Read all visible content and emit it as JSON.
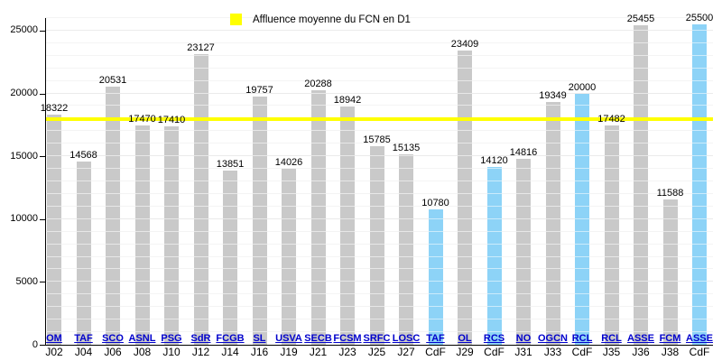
{
  "chart_data": {
    "type": "bar",
    "title": "",
    "legend_label": "Affluence moyenne du FCN en D1",
    "ylabel": "",
    "xlabel": "",
    "ylim": [
      0,
      26000
    ],
    "y_ticks": [
      0,
      5000,
      10000,
      15000,
      20000,
      25000
    ],
    "y_minor_step": 1000,
    "grid": true,
    "legend_position": "top-center",
    "colors": {
      "bar_default": "#c9c9c9",
      "bar_highlight": "#8dd3f7",
      "average_line": "#ffff00",
      "link_blue": "#0000cc",
      "text": "#000000"
    },
    "average_line": {
      "value": 17964,
      "label": "Affluence moyenne du FCN en D1"
    },
    "bars": [
      {
        "opponent": "OM",
        "matchday": "J02",
        "value": 18322,
        "highlight": false
      },
      {
        "opponent": "TAF",
        "matchday": "J04",
        "value": 14568,
        "highlight": false
      },
      {
        "opponent": "SCO",
        "matchday": "J06",
        "value": 20531,
        "highlight": false
      },
      {
        "opponent": "ASNL",
        "matchday": "J08",
        "value": 17470,
        "highlight": false
      },
      {
        "opponent": "PSG",
        "matchday": "J10",
        "value": 17410,
        "highlight": false
      },
      {
        "opponent": "SdR",
        "matchday": "J12",
        "value": 23127,
        "highlight": false
      },
      {
        "opponent": "FCGB",
        "matchday": "J14",
        "value": 13851,
        "highlight": false
      },
      {
        "opponent": "SL",
        "matchday": "J16",
        "value": 19757,
        "highlight": false
      },
      {
        "opponent": "USVA",
        "matchday": "J19",
        "value": 14026,
        "highlight": false
      },
      {
        "opponent": "SECB",
        "matchday": "J21",
        "value": 20288,
        "highlight": false
      },
      {
        "opponent": "FCSM",
        "matchday": "J23",
        "value": 18942,
        "highlight": false
      },
      {
        "opponent": "SRFC",
        "matchday": "J25",
        "value": 15785,
        "highlight": false
      },
      {
        "opponent": "LOSC",
        "matchday": "J27",
        "value": 15135,
        "highlight": false
      },
      {
        "opponent": "TAF",
        "matchday": "CdF",
        "value": 10780,
        "highlight": true
      },
      {
        "opponent": "OL",
        "matchday": "J29",
        "value": 23409,
        "highlight": false
      },
      {
        "opponent": "RCS",
        "matchday": "CdF",
        "value": 14120,
        "highlight": true
      },
      {
        "opponent": "NO",
        "matchday": "J31",
        "value": 14816,
        "highlight": false
      },
      {
        "opponent": "OGCN",
        "matchday": "J33",
        "value": 19349,
        "highlight": false
      },
      {
        "opponent": "RCL",
        "matchday": "CdF",
        "value": 20000,
        "highlight": true
      },
      {
        "opponent": "RCL",
        "matchday": "J35",
        "value": 17482,
        "highlight": false
      },
      {
        "opponent": "ASSE",
        "matchday": "J36",
        "value": 25455,
        "highlight": false
      },
      {
        "opponent": "FCM",
        "matchday": "J38",
        "value": 11588,
        "highlight": false
      },
      {
        "opponent": "ASSE",
        "matchday": "CdF",
        "value": 25500,
        "highlight": true
      }
    ]
  }
}
